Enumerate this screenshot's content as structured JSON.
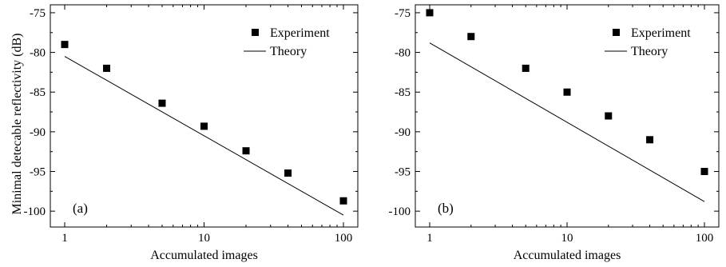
{
  "ylabel": "Minimal detecable reflectivity (dB)",
  "chart_data": [
    {
      "type": "scatter",
      "panel_label": "(a)",
      "xlabel": "Accumulated images",
      "ylabel": "Minimal detecable reflectivity (dB)",
      "xscale": "log",
      "xlim": [
        1,
        100
      ],
      "ylim": [
        -102,
        -74
      ],
      "xticks": [
        1,
        10,
        100
      ],
      "xtick_labels": [
        "1",
        "10",
        "100"
      ],
      "yticks": [
        -75,
        -80,
        -85,
        -90,
        -95,
        -100
      ],
      "ytick_labels": [
        "-75",
        "-80",
        "-85",
        "-90",
        "-95",
        "-100"
      ],
      "legend_position": "top-right",
      "series": [
        {
          "name": "Experiment",
          "kind": "markers",
          "x": [
            1,
            2,
            5,
            10,
            20,
            40,
            100
          ],
          "y": [
            -79.0,
            -82.0,
            -86.4,
            -89.3,
            -92.4,
            -95.2,
            -98.7
          ]
        },
        {
          "name": "Theory",
          "kind": "line",
          "x": [
            1,
            100
          ],
          "y": [
            -80.5,
            -100.5
          ]
        }
      ]
    },
    {
      "type": "scatter",
      "panel_label": "(b)",
      "xlabel": "Accumulated images",
      "ylabel": "",
      "xscale": "log",
      "xlim": [
        1,
        100
      ],
      "ylim": [
        -102,
        -74
      ],
      "xticks": [
        1,
        10,
        100
      ],
      "xtick_labels": [
        "1",
        "10",
        "100"
      ],
      "yticks": [
        -75,
        -80,
        -85,
        -90,
        -95,
        -100
      ],
      "ytick_labels": [
        "-75",
        "-80",
        "-85",
        "-90",
        "-95",
        "-100"
      ],
      "legend_position": "top-right",
      "series": [
        {
          "name": "Experiment",
          "kind": "markers",
          "x": [
            1,
            2,
            5,
            10,
            20,
            40,
            100
          ],
          "y": [
            -75.0,
            -78.0,
            -82.0,
            -85.0,
            -88.0,
            -91.0,
            -95.0
          ]
        },
        {
          "name": "Theory",
          "kind": "line",
          "x": [
            1,
            100
          ],
          "y": [
            -78.8,
            -98.8
          ]
        }
      ]
    }
  ]
}
